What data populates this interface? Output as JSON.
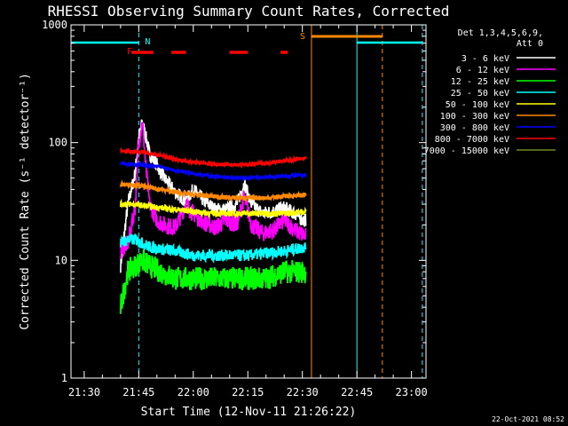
{
  "chart_data": {
    "type": "line",
    "title": "RHESSI Observing Summary Count Rates, Corrected",
    "xlabel": "Start Time (12-Nov-11 21:26:22)",
    "ylabel": "Corrected Count Rate (s⁻¹ detector⁻¹)",
    "y_scale": "log",
    "ylim": [
      1,
      1000
    ],
    "xlim": [
      "21:26:22",
      "23:04:00"
    ],
    "x_ticks": [
      "21:30",
      "21:45",
      "22:00",
      "22:15",
      "22:30",
      "22:45",
      "23:00"
    ],
    "y_ticks": [
      "1",
      "10",
      "100",
      "1000"
    ],
    "grid": false,
    "legend_position": "top-right",
    "legend_header": [
      "Det 1,3,4,5,6,9,",
      "Att 0"
    ],
    "footer_date": "22-Oct-2021 08:52",
    "series": [
      {
        "name": "3 - 6 keV",
        "color": "#ffffff",
        "x": [
          "21:40",
          "21:42",
          "21:44",
          "21:45",
          "21:46",
          "21:47",
          "21:48",
          "21:50",
          "21:52",
          "21:55",
          "21:58",
          "22:00",
          "22:03",
          "22:06",
          "22:09",
          "22:12",
          "22:14",
          "22:16",
          "22:19",
          "22:22",
          "22:25",
          "22:28",
          "22:30",
          "22:31"
        ],
        "y": [
          9,
          30,
          55,
          110,
          150,
          110,
          80,
          65,
          50,
          38,
          32,
          40,
          32,
          27,
          27,
          30,
          45,
          30,
          25,
          26,
          28,
          25,
          22,
          22
        ]
      },
      {
        "name": "6 - 12 keV",
        "color": "#ff00ff",
        "x": [
          "21:40",
          "21:42",
          "21:44",
          "21:45",
          "21:46",
          "21:47",
          "21:48",
          "21:50",
          "21:52",
          "21:55",
          "21:58",
          "22:00",
          "22:03",
          "22:06",
          "22:09",
          "22:12",
          "22:14",
          "22:16",
          "22:19",
          "22:22",
          "22:25",
          "22:28",
          "22:31"
        ],
        "y": [
          12,
          14,
          28,
          100,
          150,
          60,
          30,
          22,
          20,
          19,
          30,
          25,
          21,
          19,
          22,
          20,
          35,
          20,
          17,
          18,
          22,
          18,
          16
        ]
      },
      {
        "name": "12 - 25 keV",
        "color": "#00ff00",
        "x": [
          "21:40",
          "21:42",
          "21:44",
          "21:46",
          "21:48",
          "21:51",
          "21:55",
          "22:00",
          "22:05",
          "22:10",
          "22:15",
          "22:20",
          "22:25",
          "22:31"
        ],
        "y": [
          4,
          8,
          9,
          10,
          9,
          8,
          7,
          7,
          7,
          7,
          7,
          7,
          8,
          8
        ]
      },
      {
        "name": "25 - 50 keV",
        "color": "#00ffff",
        "x": [
          "21:40",
          "21:42",
          "21:44",
          "21:46",
          "21:48",
          "21:51",
          "21:55",
          "22:00",
          "22:05",
          "22:10",
          "22:15",
          "22:20",
          "22:25",
          "22:31"
        ],
        "y": [
          14,
          15,
          15,
          14,
          13,
          12.5,
          12,
          11,
          11,
          11,
          11,
          11.5,
          12,
          13
        ]
      },
      {
        "name": "50 - 100 keV",
        "color": "#ffff00",
        "x": [
          "21:40",
          "21:43",
          "21:47",
          "21:51",
          "21:55",
          "22:00",
          "22:05",
          "22:10",
          "22:15",
          "22:20",
          "22:25",
          "22:31"
        ],
        "y": [
          30,
          30,
          29,
          28,
          27,
          26,
          25,
          25,
          25,
          25,
          25,
          26
        ]
      },
      {
        "name": "100 - 300 keV",
        "color": "#ff8800",
        "x": [
          "21:40",
          "21:43",
          "21:47",
          "21:51",
          "21:55",
          "22:00",
          "22:05",
          "22:10",
          "22:15",
          "22:20",
          "22:25",
          "22:31"
        ],
        "y": [
          44,
          44,
          42,
          40,
          38,
          36,
          35,
          34,
          34,
          34,
          35,
          36
        ]
      },
      {
        "name": "300 - 800 keV",
        "color": "#0000ff",
        "x": [
          "21:40",
          "21:43",
          "21:47",
          "21:51",
          "21:55",
          "22:00",
          "22:05",
          "22:10",
          "22:15",
          "22:20",
          "22:25",
          "22:31"
        ],
        "y": [
          66,
          66,
          64,
          62,
          58,
          55,
          52,
          50,
          50,
          51,
          52,
          53
        ]
      },
      {
        "name": "800 - 7000 keV",
        "color": "#ff0000",
        "x": [
          "21:40",
          "21:43",
          "21:47",
          "21:51",
          "21:55",
          "22:00",
          "22:05",
          "22:10",
          "22:15",
          "22:20",
          "22:25",
          "22:31"
        ],
        "y": [
          85,
          84,
          82,
          78,
          72,
          68,
          66,
          65,
          65,
          67,
          70,
          74
        ]
      },
      {
        "name": "7000 - 15000 keV",
        "color": "#6b8e23",
        "x": [],
        "y": []
      }
    ],
    "annotations": [
      {
        "label": "N",
        "color": "#00ffff"
      },
      {
        "label": "F",
        "color": "#ff0000"
      },
      {
        "label": "S",
        "color": "#ff8800"
      }
    ],
    "night_boundaries": [
      {
        "time": "21:26:22",
        "style": "solid",
        "color": "#00ffff"
      },
      {
        "time": "21:45",
        "style": "dashed",
        "color": "#00ffff"
      },
      {
        "time": "22:45",
        "style": "solid",
        "color": "#00ffff"
      },
      {
        "time": "23:03",
        "style": "dashed",
        "color": "#00ffff"
      }
    ],
    "saa_boundaries": [
      {
        "time": "22:32:30",
        "style": "solid",
        "color": "#ff8800"
      },
      {
        "time": "22:52",
        "style": "dashed",
        "color": "#ff8800"
      }
    ],
    "night_bars": [
      {
        "start": "21:26:22",
        "end": "21:45",
        "color": "#00ffff"
      },
      {
        "start": "22:45",
        "end": "23:03",
        "color": "#00ffff"
      }
    ],
    "flare_bars": [
      {
        "start": "21:43",
        "end": "21:49",
        "color": "#ff0000"
      },
      {
        "start": "21:54",
        "end": "21:58",
        "color": "#ff0000"
      },
      {
        "start": "22:10",
        "end": "22:15",
        "color": "#ff0000"
      },
      {
        "start": "22:24",
        "end": "22:26",
        "color": "#ff0000"
      }
    ],
    "saa_bar": {
      "start": "22:32:30",
      "end": "22:52",
      "color": "#ff8800"
    }
  }
}
